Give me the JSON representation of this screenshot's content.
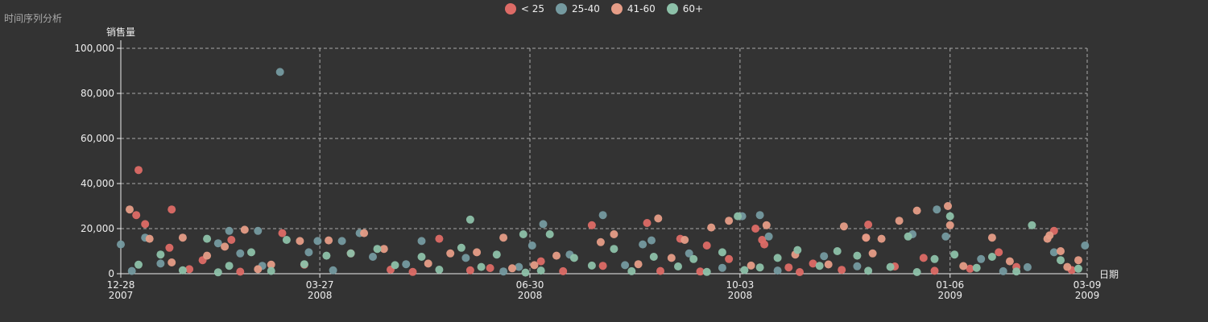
{
  "chart_data": {
    "type": "scatter",
    "title": "时间序列分析",
    "xlabel": "日期",
    "ylabel": "销售量",
    "xlim": [
      "2007-12-28",
      "2009-03-09"
    ],
    "ylim": [
      0,
      100000
    ],
    "x_ticks": [
      {
        "date": "2007-12-28",
        "line1": "12-28",
        "line2": "2007"
      },
      {
        "date": "2008-03-27",
        "line1": "03-27",
        "line2": "2008"
      },
      {
        "date": "2008-06-30",
        "line1": "06-30",
        "line2": "2008"
      },
      {
        "date": "2008-10-03",
        "line1": "10-03",
        "line2": "2008"
      },
      {
        "date": "2009-01-06",
        "line1": "01-06",
        "line2": "2009"
      },
      {
        "date": "2009-03-09",
        "line1": "03-09",
        "line2": "2009"
      }
    ],
    "y_ticks": [
      "0",
      "20,000",
      "40,000",
      "60,000",
      "80,000",
      "100,000"
    ],
    "y_tick_values": [
      0,
      20000,
      40000,
      60000,
      80000,
      100000
    ],
    "grid": true,
    "legend_position": "top-center",
    "series": [
      {
        "name": "< 25",
        "color": "#dd6b66",
        "points": [
          [
            "2008-01-04",
            26000
          ],
          [
            "2008-01-05",
            46000
          ],
          [
            "2008-01-08",
            22000
          ],
          [
            "2008-01-20",
            28500
          ],
          [
            "2008-01-19",
            11500
          ],
          [
            "2008-02-16",
            15000
          ],
          [
            "2008-03-10",
            18000
          ],
          [
            "2008-07-28",
            21500
          ],
          [
            "2008-08-22",
            22500
          ],
          [
            "2008-09-06",
            15500
          ],
          [
            "2008-09-18",
            12500
          ],
          [
            "2008-10-10",
            20000
          ],
          [
            "2008-10-13",
            15000
          ],
          [
            "2008-10-14",
            13000
          ],
          [
            "2008-11-30",
            21800
          ],
          [
            "2008-11-29",
            16000
          ],
          [
            "2009-02-22",
            19000
          ],
          [
            "2009-01-28",
            9500
          ],
          [
            "2008-12-25",
            7000
          ],
          [
            "2008-05-20",
            15500
          ],
          [
            "2008-04-10",
            9000
          ],
          [
            "2008-02-03",
            6000
          ],
          [
            "2008-07-05",
            5500
          ],
          [
            "2008-09-28",
            6500
          ],
          [
            "2008-11-05",
            4500
          ],
          [
            "2009-02-05",
            3000
          ],
          [
            "2008-06-12",
            2500
          ],
          [
            "2008-03-20",
            4000
          ],
          [
            "2008-08-02",
            3500
          ],
          [
            "2008-10-25",
            2800
          ],
          [
            "2008-12-12",
            3200
          ],
          [
            "2008-01-28",
            2000
          ],
          [
            "2008-04-28",
            1800
          ],
          [
            "2008-06-03",
            1500
          ],
          [
            "2008-08-28",
            1200
          ],
          [
            "2008-11-18",
            1700
          ],
          [
            "2009-01-15",
            2200
          ],
          [
            "2009-03-02",
            1600
          ],
          [
            "2008-02-20",
            900
          ],
          [
            "2008-05-08",
            800
          ],
          [
            "2008-07-15",
            1100
          ],
          [
            "2008-09-15",
            950
          ],
          [
            "2008-10-30",
            700
          ],
          [
            "2008-12-30",
            1300
          ]
        ]
      },
      {
        "name": "25-40",
        "color": "#759aa0",
        "points": [
          [
            "2007-12-28",
            13000
          ],
          [
            "2008-01-08",
            16000
          ],
          [
            "2008-02-10",
            13500
          ],
          [
            "2008-02-15",
            19000
          ],
          [
            "2008-02-28",
            19000
          ],
          [
            "2008-03-09",
            89500
          ],
          [
            "2008-03-22",
            9500
          ],
          [
            "2008-03-26",
            14500
          ],
          [
            "2008-04-06",
            14500
          ],
          [
            "2008-04-14",
            18000
          ],
          [
            "2008-05-12",
            14500
          ],
          [
            "2008-07-01",
            12500
          ],
          [
            "2008-07-06",
            22000
          ],
          [
            "2008-08-02",
            26000
          ],
          [
            "2008-08-20",
            13000
          ],
          [
            "2008-08-24",
            14800
          ],
          [
            "2008-10-04",
            25500
          ],
          [
            "2008-10-12",
            26000
          ],
          [
            "2008-10-16",
            16500
          ],
          [
            "2008-12-20",
            17500
          ],
          [
            "2008-12-31",
            28500
          ],
          [
            "2009-01-04",
            16500
          ],
          [
            "2009-03-08",
            12500
          ],
          [
            "2009-02-22",
            9500
          ],
          [
            "2008-02-20",
            9000
          ],
          [
            "2008-04-20",
            7500
          ],
          [
            "2008-06-01",
            7000
          ],
          [
            "2008-07-18",
            8500
          ],
          [
            "2008-09-10",
            9000
          ],
          [
            "2008-11-10",
            7800
          ],
          [
            "2009-01-20",
            6500
          ],
          [
            "2008-01-15",
            4500
          ],
          [
            "2008-03-01",
            3500
          ],
          [
            "2008-05-05",
            4200
          ],
          [
            "2008-06-25",
            3000
          ],
          [
            "2008-08-12",
            3800
          ],
          [
            "2008-09-25",
            2600
          ],
          [
            "2008-11-25",
            3300
          ],
          [
            "2009-02-10",
            2900
          ],
          [
            "2008-01-02",
            1200
          ],
          [
            "2008-04-02",
            1500
          ],
          [
            "2008-06-18",
            1000
          ],
          [
            "2008-10-20",
            1400
          ],
          [
            "2009-01-30",
            1100
          ]
        ]
      },
      {
        "name": "41-60",
        "color": "#e69d87",
        "points": [
          [
            "2008-01-01",
            28500
          ],
          [
            "2008-01-10",
            15500
          ],
          [
            "2008-01-25",
            16000
          ],
          [
            "2008-02-13",
            12000
          ],
          [
            "2008-02-22",
            19500
          ],
          [
            "2008-03-18",
            14500
          ],
          [
            "2008-03-31",
            14800
          ],
          [
            "2008-04-16",
            18000
          ],
          [
            "2008-05-25",
            9000
          ],
          [
            "2008-06-18",
            16000
          ],
          [
            "2008-08-01",
            14000
          ],
          [
            "2008-08-07",
            17500
          ],
          [
            "2008-08-27",
            24500
          ],
          [
            "2008-09-08",
            15000
          ],
          [
            "2008-09-20",
            20500
          ],
          [
            "2008-09-28",
            23500
          ],
          [
            "2008-10-15",
            21500
          ],
          [
            "2008-11-19",
            21000
          ],
          [
            "2008-11-29",
            16000
          ],
          [
            "2008-12-06",
            15500
          ],
          [
            "2008-12-14",
            23500
          ],
          [
            "2008-12-22",
            28000
          ],
          [
            "2009-01-05",
            30000
          ],
          [
            "2009-01-06",
            21500
          ],
          [
            "2009-01-25",
            16000
          ],
          [
            "2009-02-20",
            17000
          ],
          [
            "2009-02-19",
            15500
          ],
          [
            "2009-02-25",
            10000
          ],
          [
            "2009-03-05",
            6000
          ],
          [
            "2008-02-05",
            8000
          ],
          [
            "2008-04-25",
            11000
          ],
          [
            "2008-06-06",
            9500
          ],
          [
            "2008-07-12",
            8000
          ],
          [
            "2008-09-02",
            7000
          ],
          [
            "2008-10-28",
            8500
          ],
          [
            "2008-12-02",
            9000
          ],
          [
            "2009-02-02",
            5500
          ],
          [
            "2008-01-20",
            5000
          ],
          [
            "2008-03-05",
            4000
          ],
          [
            "2008-05-15",
            4500
          ],
          [
            "2008-07-02",
            3800
          ],
          [
            "2008-08-18",
            4200
          ],
          [
            "2008-10-08",
            3600
          ],
          [
            "2008-11-12",
            4100
          ],
          [
            "2009-01-12",
            3400
          ],
          [
            "2009-02-28",
            3000
          ],
          [
            "2008-02-28",
            2000
          ],
          [
            "2008-06-22",
            2400
          ]
        ]
      },
      {
        "name": "60+",
        "color": "#8dc1a9",
        "points": [
          [
            "2008-02-05",
            15500
          ],
          [
            "2008-03-12",
            15000
          ],
          [
            "2008-04-22",
            11000
          ],
          [
            "2008-05-30",
            11500
          ],
          [
            "2008-06-03",
            24000
          ],
          [
            "2008-06-27",
            17500
          ],
          [
            "2008-07-09",
            17500
          ],
          [
            "2008-08-07",
            11000
          ],
          [
            "2008-09-25",
            9500
          ],
          [
            "2008-10-02",
            25500
          ],
          [
            "2008-10-29",
            10500
          ],
          [
            "2008-11-16",
            10000
          ],
          [
            "2008-12-18",
            16500
          ],
          [
            "2009-01-06",
            25500
          ],
          [
            "2009-02-12",
            21500
          ],
          [
            "2009-01-08",
            8500
          ],
          [
            "2008-01-15",
            8500
          ],
          [
            "2008-02-25",
            9500
          ],
          [
            "2008-03-30",
            8000
          ],
          [
            "2008-04-10",
            9000
          ],
          [
            "2008-05-12",
            7500
          ],
          [
            "2008-06-15",
            8500
          ],
          [
            "2008-07-20",
            7000
          ],
          [
            "2008-08-25",
            7500
          ],
          [
            "2008-09-12",
            6500
          ],
          [
            "2008-10-20",
            7000
          ],
          [
            "2008-11-25",
            8000
          ],
          [
            "2008-12-30",
            6500
          ],
          [
            "2009-01-25",
            7500
          ],
          [
            "2009-02-25",
            6000
          ],
          [
            "2008-01-05",
            4000
          ],
          [
            "2008-02-15",
            3500
          ],
          [
            "2008-03-20",
            4200
          ],
          [
            "2008-04-30",
            3800
          ],
          [
            "2008-06-08",
            3000
          ],
          [
            "2008-07-28",
            3600
          ],
          [
            "2008-09-05",
            3200
          ],
          [
            "2008-10-12",
            2800
          ],
          [
            "2008-11-08",
            3500
          ],
          [
            "2008-12-10",
            3000
          ],
          [
            "2009-01-18",
            2600
          ],
          [
            "2009-03-05",
            2200
          ],
          [
            "2008-01-25",
            1500
          ],
          [
            "2008-03-05",
            1200
          ],
          [
            "2008-05-20",
            1800
          ],
          [
            "2008-07-05",
            1400
          ],
          [
            "2008-08-15",
            1100
          ],
          [
            "2008-10-05",
            1600
          ],
          [
            "2008-11-30",
            1300
          ],
          [
            "2009-02-05",
            1000
          ],
          [
            "2008-02-10",
            600
          ],
          [
            "2008-06-28",
            500
          ],
          [
            "2008-09-18",
            800
          ],
          [
            "2008-12-22",
            700
          ]
        ]
      }
    ]
  }
}
